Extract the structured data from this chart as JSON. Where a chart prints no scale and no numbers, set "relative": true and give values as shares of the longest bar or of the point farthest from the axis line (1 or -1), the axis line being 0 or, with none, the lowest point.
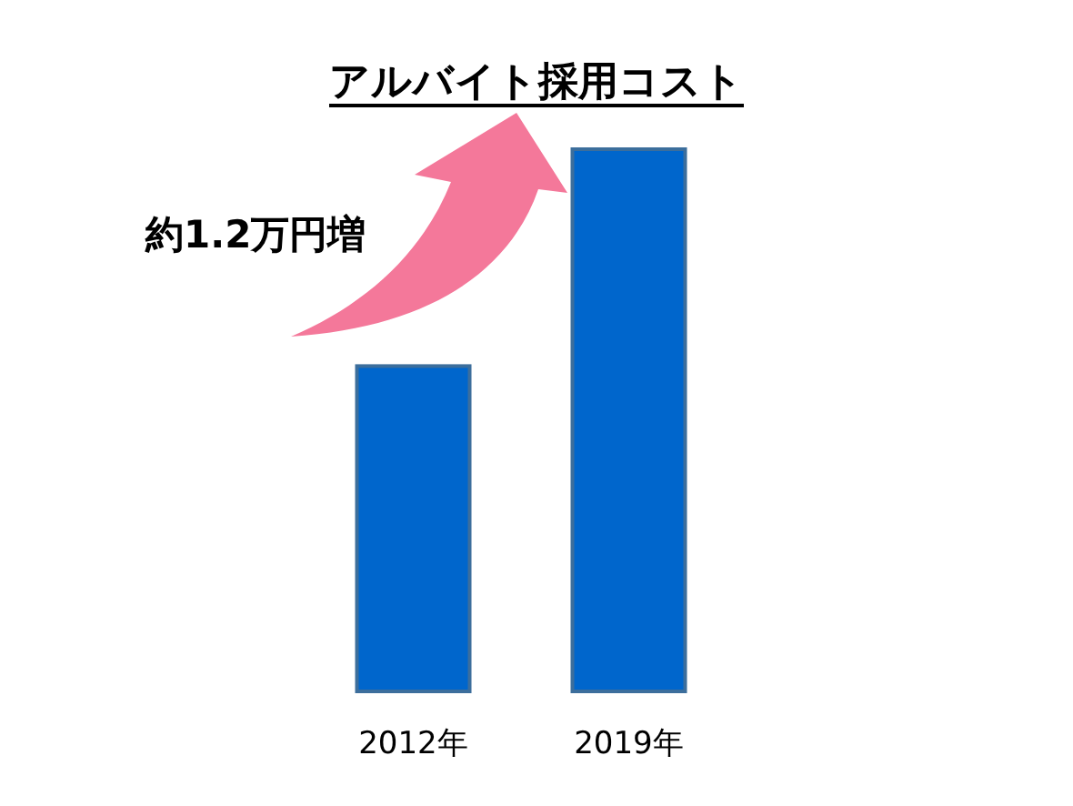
{
  "chart_data": {
    "type": "bar",
    "title": "アルバイト採用コスト",
    "categories": [
      "2012年",
      "2019年"
    ],
    "values": [
      0.6,
      1
    ],
    "color": "#0066cc",
    "relative": true,
    "annotations": [
      "約1.2万円増"
    ]
  }
}
